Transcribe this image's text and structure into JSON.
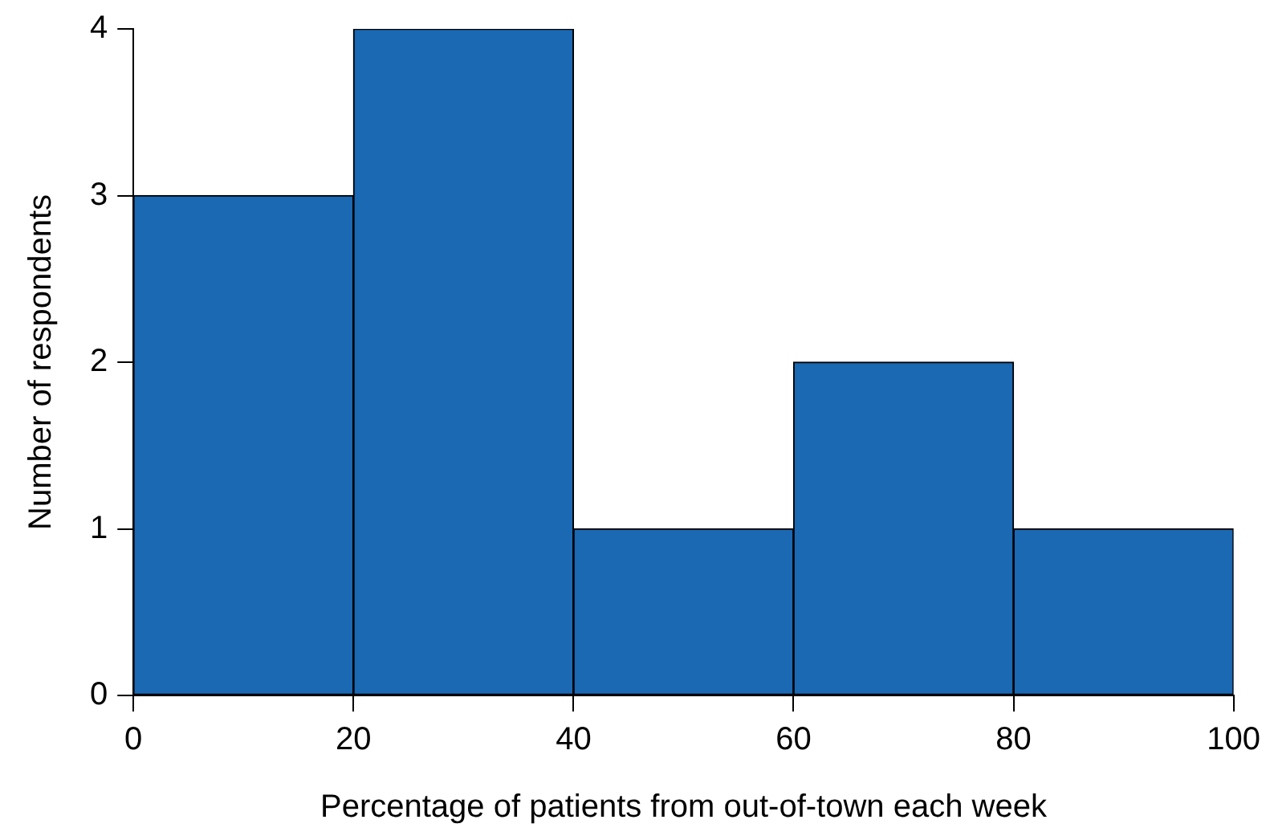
{
  "chart_data": {
    "type": "histogram",
    "xlabel": "Percentage of patients from out-of-town each week",
    "ylabel": "Number of respondents",
    "bins": [
      0,
      20,
      40,
      60,
      80,
      100
    ],
    "values": [
      3,
      4,
      1,
      2,
      1
    ],
    "color": "#1b68b3",
    "xlim": [
      0,
      100
    ],
    "xticks": [
      0,
      20,
      40,
      60,
      80,
      100
    ],
    "ylim": [
      0,
      4
    ],
    "yticks": [
      0,
      1,
      2,
      3,
      4
    ],
    "grid": false,
    "legend": false
  }
}
